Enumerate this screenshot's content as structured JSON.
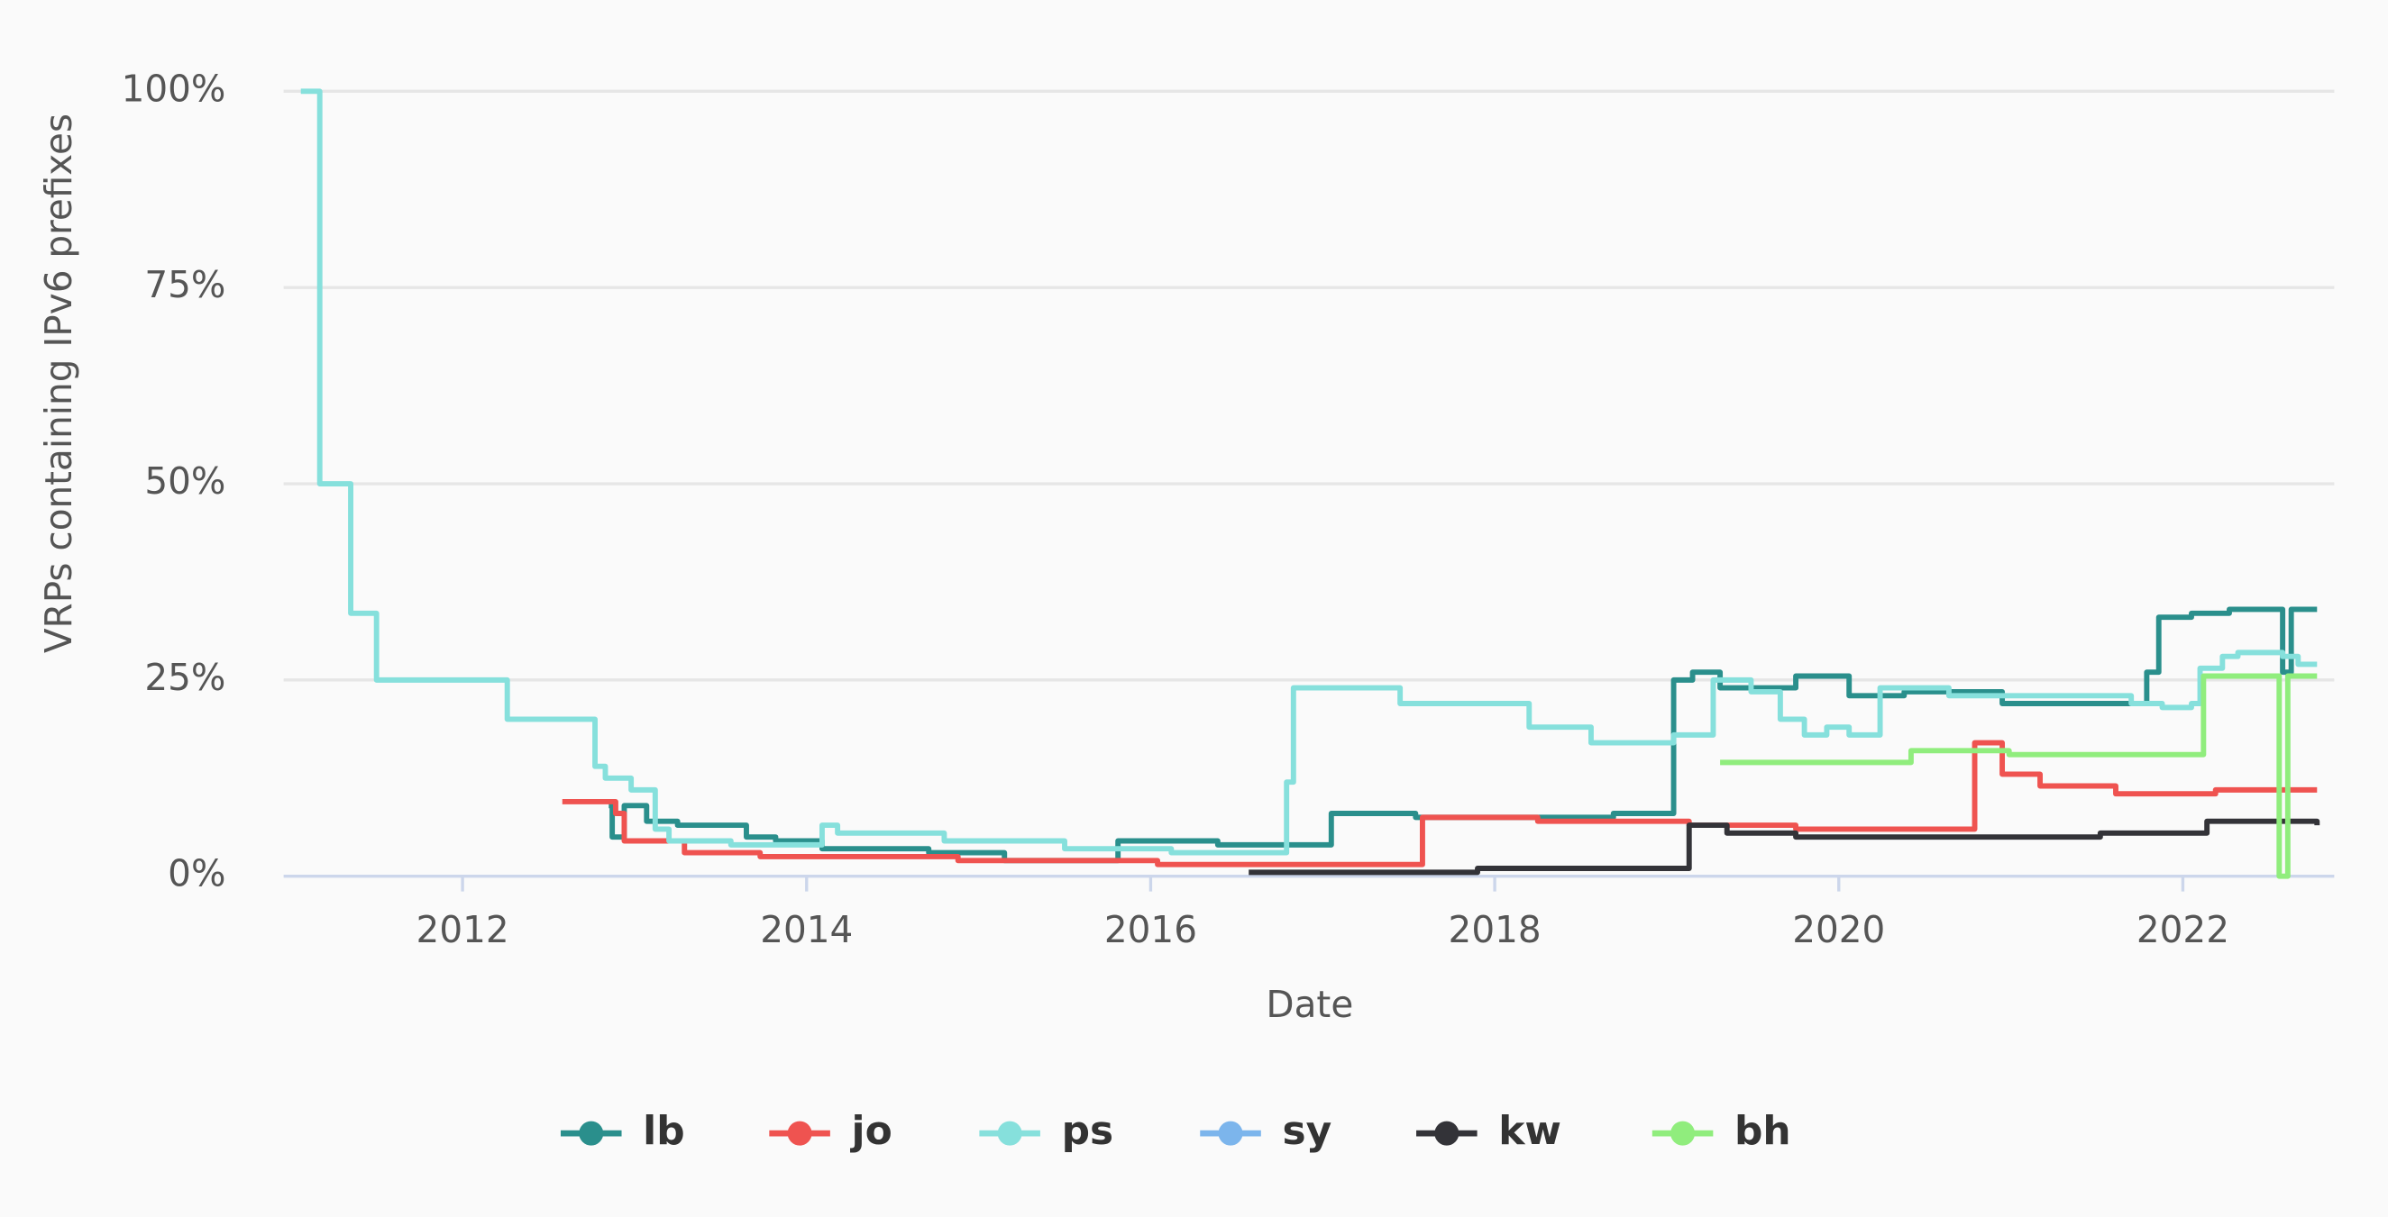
{
  "chart_data": {
    "type": "line",
    "step": "after",
    "x_label": "Date",
    "y_label": "VRPs containing IPv6 prefixes",
    "xlim": [
      2010.96,
      2022.88
    ],
    "xticks": [
      2012,
      2014,
      2016,
      2018,
      2020,
      2022
    ],
    "ylim": [
      0,
      100
    ],
    "yticks": [
      {
        "value": 0,
        "label": "0%"
      },
      {
        "value": 25,
        "label": "25%"
      },
      {
        "value": 50,
        "label": "50%"
      },
      {
        "value": 75,
        "label": "75%"
      },
      {
        "value": 100,
        "label": "100%"
      }
    ],
    "grid": true,
    "legend": "bottom",
    "series": [
      {
        "name": "lb",
        "color": "#2a8f8c",
        "x": [
          2012.85,
          2012.87,
          2012.94,
          2013.07,
          2013.25,
          2013.65,
          2013.82,
          2014.09,
          2014.71,
          2015.15,
          2015.81,
          2016.39,
          2017.05,
          2017.54,
          2018.69,
          2019.04,
          2019.15,
          2019.31,
          2019.75,
          2020.06,
          2020.38,
          2020.95,
          2021.79,
          2021.86,
          2022.05,
          2022.27,
          2022.56,
          2022.58,
          2022.63,
          2022.78
        ],
        "values": [
          9,
          5,
          9,
          7,
          6.5,
          5,
          4.5,
          3.5,
          3,
          2,
          4.5,
          4,
          8,
          7.5,
          8,
          25,
          26,
          24,
          25.5,
          23,
          23.5,
          22,
          26,
          33,
          33.5,
          34,
          34,
          26,
          34,
          34
        ]
      },
      {
        "name": "jo",
        "color": "#ef5350",
        "x": [
          2012.58,
          2012.89,
          2012.94,
          2013.29,
          2013.73,
          2014.88,
          2016.04,
          2017.58,
          2018.25,
          2019.13,
          2019.75,
          2020.79,
          2020.95,
          2021.17,
          2021.61,
          2022.19,
          2022.78
        ],
        "values": [
          9.5,
          8,
          4.5,
          3,
          2.5,
          2,
          1.5,
          7.5,
          7,
          6.5,
          6,
          17,
          13,
          11.5,
          10.5,
          11,
          11
        ]
      },
      {
        "name": "ps",
        "color": "#86e0dc",
        "x": [
          2011.06,
          2011.17,
          2011.35,
          2011.5,
          2012.26,
          2012.77,
          2012.83,
          2012.98,
          2013.12,
          2013.2,
          2013.56,
          2014.09,
          2014.18,
          2014.8,
          2015.5,
          2016.12,
          2016.79,
          2016.83,
          2017.45,
          2018.2,
          2018.56,
          2019.04,
          2019.27,
          2019.49,
          2019.66,
          2019.8,
          2019.93,
          2020.06,
          2020.24,
          2020.64,
          2021.7,
          2021.88,
          2022.05,
          2022.1,
          2022.23,
          2022.32,
          2022.58,
          2022.67,
          2022.78
        ],
        "values": [
          100,
          50,
          33.5,
          25,
          20,
          14,
          12.5,
          11,
          6,
          4.5,
          4,
          6.5,
          5.5,
          4.5,
          3.5,
          3,
          12,
          24,
          22,
          19,
          17,
          18,
          25,
          23.5,
          20,
          18,
          19,
          18,
          24,
          23,
          22,
          21.5,
          22,
          26.5,
          28,
          28.5,
          28,
          27,
          27
        ]
      },
      {
        "name": "sy",
        "color": "#7cb5ec",
        "x": [],
        "values": []
      },
      {
        "name": "kw",
        "color": "#333338",
        "x": [
          2016.57,
          2017.9,
          2019.13,
          2019.35,
          2019.75,
          2021.08,
          2021.52,
          2022.14,
          2022.78
        ],
        "values": [
          0.5,
          1,
          6.5,
          5.5,
          5,
          5,
          5.5,
          7,
          6.5
        ]
      },
      {
        "name": "bh",
        "color": "#90ed7d",
        "x": [
          2019.31,
          2020.42,
          2020.99,
          2022.12,
          2022.56,
          2022.61,
          2022.78
        ],
        "values": [
          14.5,
          16,
          15.5,
          25.5,
          0,
          25.5,
          25.5
        ]
      }
    ]
  }
}
